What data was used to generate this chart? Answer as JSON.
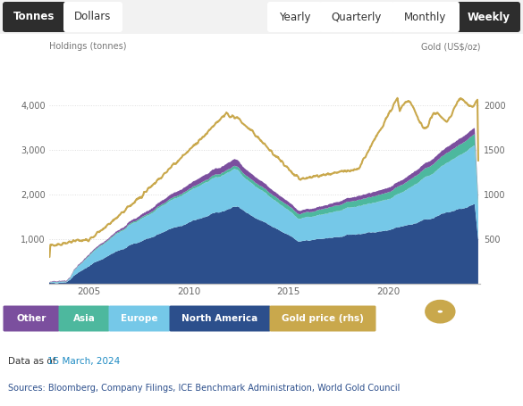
{
  "title_left": "Holdings (tonnes)",
  "title_right": "Gold (US$/oz)",
  "tab_buttons_left": [
    "Tonnes",
    "Dollars"
  ],
  "tab_buttons_right": [
    "Yearly",
    "Quarterly",
    "Monthly",
    "Weekly"
  ],
  "active_tab_left": "Tonnes",
  "active_tab_right": "Weekly",
  "legend_items": [
    {
      "label": "Other",
      "color": "#7b4f9e"
    },
    {
      "label": "Asia",
      "color": "#4db89e"
    },
    {
      "label": "Europe",
      "color": "#75c8e8"
    },
    {
      "label": "North America",
      "color": "#2c4f8c"
    },
    {
      "label": "Gold price (rhs)",
      "color": "#c9a84c"
    }
  ],
  "date_text_prefix": "Data as of ",
  "date_highlight": "15 March, 2024",
  "source_text": "Sources: Bloomberg, Company Filings, ICE Benchmark Administration, World Gold Council",
  "ylim_left": [
    0,
    5000
  ],
  "ylim_right": [
    0,
    2500
  ],
  "yticks_left": [
    1000,
    2000,
    3000,
    4000
  ],
  "yticks_right": [
    500,
    1000,
    1500,
    2000
  ],
  "colors": {
    "other": "#7b4f9e",
    "asia": "#4db89e",
    "europe": "#75c8e8",
    "north_america": "#2c4f8c",
    "gold_price": "#c9a84c",
    "background": "#ffffff",
    "tab_active_bg": "#2d2d2d",
    "tab_inactive_bg": "#efefef",
    "tab_active_text": "#ffffff",
    "tab_inactive_text": "#333333",
    "grid": "#cccccc",
    "axis_label": "#777777",
    "date_color": "#1e8bc3",
    "source_color": "#2c4f8c",
    "wgc_bg": "#12265e"
  },
  "xmin": 2003.0,
  "xmax": 2024.6,
  "xticks": [
    2005,
    2010,
    2015,
    2020
  ]
}
